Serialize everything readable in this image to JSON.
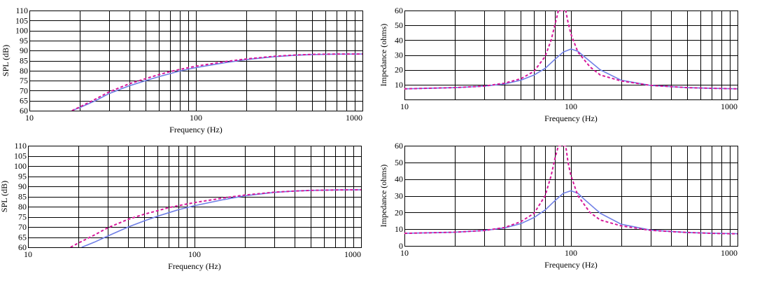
{
  "colors": {
    "series_solid": "#6f7fe6",
    "series_dashed": "#d6179a",
    "grid": "#000000",
    "background": "#ffffff"
  },
  "chart_data": [
    {
      "id": "spl-top",
      "type": "line",
      "xlabel": "Frequency (Hz)",
      "ylabel": "SPL (dB)",
      "xscale": "log",
      "xlim": [
        10,
        1000
      ],
      "ylim": [
        60,
        110
      ],
      "xticks": [
        10,
        100,
        1000
      ],
      "xtick_labels": [
        "10",
        "100",
        "1000"
      ],
      "yticks": [
        60,
        65,
        70,
        75,
        80,
        85,
        90,
        95,
        100,
        105,
        110
      ],
      "ytick_labels": [
        "60",
        "65",
        "70",
        "75",
        "80",
        "85",
        "90",
        "95",
        "100",
        "105",
        "110"
      ],
      "grid": true,
      "series": [
        {
          "style": "solid",
          "x": [
            18,
            20,
            25,
            30,
            40,
            50,
            60,
            70,
            80,
            100,
            150,
            200,
            300,
            400,
            500,
            700,
            1000
          ],
          "y": [
            60,
            61.5,
            65,
            68.5,
            72.5,
            75,
            77,
            78.5,
            79.8,
            81.5,
            84,
            85.5,
            87,
            87.7,
            88,
            88.2,
            88.3
          ]
        },
        {
          "style": "dashed",
          "x": [
            18,
            20,
            25,
            30,
            40,
            50,
            60,
            70,
            80,
            100,
            150,
            200,
            300,
            400,
            500,
            700,
            1000
          ],
          "y": [
            60,
            61.8,
            65.8,
            69.3,
            73.5,
            76,
            78,
            79.5,
            80.6,
            82.2,
            84.5,
            85.8,
            87.2,
            87.8,
            88.1,
            88.3,
            88.3
          ]
        }
      ]
    },
    {
      "id": "impedance-top",
      "type": "line",
      "xlabel": "Frequency (Hz)",
      "ylabel": "Impedance (ohms)",
      "xscale": "log",
      "xlim": [
        10,
        1000
      ],
      "ylim": [
        0,
        60
      ],
      "xticks": [
        10,
        100,
        1000
      ],
      "xtick_labels": [
        "10",
        "100",
        "1000"
      ],
      "yticks": [
        10,
        20,
        30,
        40,
        50,
        60
      ],
      "ytick_labels": [
        "10",
        "20",
        "30",
        "40",
        "50",
        "60"
      ],
      "grid": true,
      "series": [
        {
          "style": "solid",
          "x": [
            10,
            20,
            30,
            40,
            50,
            60,
            70,
            80,
            90,
            100,
            110,
            120,
            150,
            200,
            300,
            500,
            700,
            1000
          ],
          "y": [
            7.2,
            8,
            9,
            10.5,
            13,
            16.5,
            21,
            27,
            32,
            34,
            32.5,
            29,
            20,
            13,
            9.5,
            8,
            7.5,
            7.2
          ]
        },
        {
          "style": "dashed",
          "x": [
            10,
            20,
            30,
            40,
            50,
            60,
            70,
            76,
            80,
            84,
            86,
            88,
            90,
            93,
            96,
            100,
            110,
            130,
            150,
            200,
            300,
            500,
            700,
            1000
          ],
          "y": [
            7.2,
            8,
            9,
            11,
            14,
            19,
            29,
            40,
            50,
            60,
            60,
            60,
            60,
            60,
            52,
            44,
            32,
            22,
            16.5,
            12.5,
            9.5,
            8,
            7.5,
            7.2
          ]
        }
      ]
    },
    {
      "id": "spl-bottom",
      "type": "line",
      "xlabel": "Frequency (Hz)",
      "ylabel": "SPL (dB)",
      "xscale": "log",
      "xlim": [
        10,
        1000
      ],
      "ylim": [
        60,
        110
      ],
      "xticks": [
        10,
        100,
        1000
      ],
      "xtick_labels": [
        "10",
        "100",
        "1000"
      ],
      "yticks": [
        60,
        65,
        70,
        75,
        80,
        85,
        90,
        95,
        100,
        105,
        110
      ],
      "ytick_labels": [
        "60",
        "65",
        "70",
        "75",
        "80",
        "85",
        "90",
        "95",
        "100",
        "105",
        "110"
      ],
      "grid": true,
      "series": [
        {
          "style": "solid",
          "x": [
            21,
            25,
            30,
            40,
            50,
            60,
            70,
            80,
            100,
            150,
            200,
            300,
            400,
            500,
            700,
            1000
          ],
          "y": [
            60,
            62.5,
            65.5,
            70,
            73,
            75.3,
            77,
            78.5,
            80.5,
            83.5,
            85.3,
            87,
            87.7,
            88,
            88.2,
            88.3
          ]
        },
        {
          "style": "dashed",
          "x": [
            18,
            20,
            25,
            30,
            40,
            50,
            60,
            70,
            80,
            100,
            150,
            200,
            300,
            400,
            500,
            700,
            1000
          ],
          "y": [
            60,
            62,
            66,
            69.5,
            73.8,
            76.3,
            78,
            79.5,
            80.5,
            82,
            84.3,
            85.7,
            87.1,
            87.7,
            88,
            88.2,
            88.3
          ]
        }
      ]
    },
    {
      "id": "impedance-bottom",
      "type": "line",
      "xlabel": "Frequency (Hz)",
      "ylabel": "Impedance (ohms)",
      "xscale": "log",
      "xlim": [
        10,
        1000
      ],
      "ylim": [
        0,
        60
      ],
      "xticks": [
        10,
        100,
        1000
      ],
      "xtick_labels": [
        "10",
        "100",
        "1000"
      ],
      "yticks": [
        0,
        10,
        20,
        30,
        40,
        50,
        60
      ],
      "ytick_labels": [
        "0",
        "10",
        "20",
        "30",
        "40",
        "50",
        "60"
      ],
      "grid": true,
      "series": [
        {
          "style": "solid",
          "x": [
            10,
            20,
            30,
            40,
            50,
            60,
            70,
            80,
            90,
            100,
            110,
            120,
            150,
            200,
            300,
            500,
            700,
            1000
          ],
          "y": [
            7.5,
            8.2,
            9.2,
            10.8,
            13.3,
            17,
            21.5,
            27,
            31.5,
            33,
            31.5,
            28,
            19.5,
            13,
            9.5,
            8,
            7.6,
            7.3
          ]
        },
        {
          "style": "dashed",
          "x": [
            10,
            20,
            30,
            40,
            50,
            60,
            70,
            76,
            80,
            84,
            86,
            88,
            90,
            93,
            96,
            100,
            110,
            130,
            150,
            200,
            300,
            500,
            700,
            1000
          ],
          "y": [
            7.5,
            8.2,
            9.2,
            11,
            14.5,
            19.5,
            30,
            42,
            52,
            60,
            60,
            60,
            60,
            60,
            50,
            42,
            30,
            20,
            15.5,
            12,
            9.3,
            8,
            7.5,
            7.2
          ]
        }
      ]
    }
  ]
}
